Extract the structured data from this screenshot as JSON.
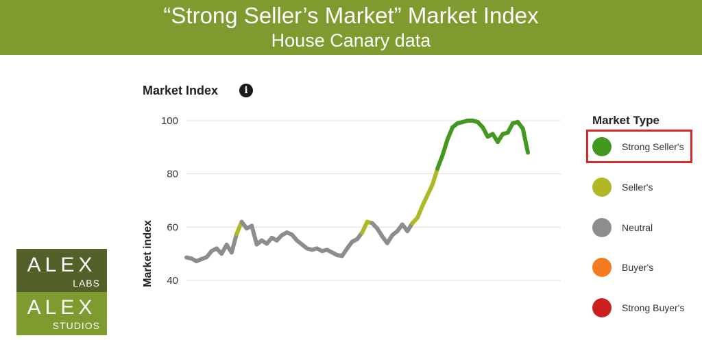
{
  "header": {
    "title": "“Strong Seller’s Market” Market Index",
    "subtitle": "House Canary data"
  },
  "chart_title": "Market Index",
  "info_icon": "info-icon",
  "legend": {
    "title": "Market Type",
    "items": [
      {
        "label": "Strong Seller's",
        "color": "#43991f"
      },
      {
        "label": "Seller's",
        "color": "#b0b825"
      },
      {
        "label": "Neutral",
        "color": "#8d8d8d"
      },
      {
        "label": "Buyer's",
        "color": "#f47b20"
      },
      {
        "label": "Strong Buyer's",
        "color": "#cc1f1f"
      }
    ],
    "highlighted": "Strong Seller's",
    "highlight_color": "#d62a2a"
  },
  "logo": {
    "line1": "ALEX",
    "line2": "LABS",
    "line3": "ALEX",
    "line4": "STUDIOS",
    "color_top": "#54602a",
    "color_bottom": "#7f9a2e"
  },
  "chart_data": {
    "type": "line",
    "title": "Market Index",
    "ylabel": "Market index",
    "xlabel": "",
    "ylim": [
      40,
      100
    ],
    "yticks": [
      100,
      80,
      60,
      40
    ],
    "grid": true,
    "legend_position": "right",
    "series": [
      {
        "values": [
          {
            "x": 0,
            "y": 48.6,
            "t": "neutral"
          },
          {
            "x": 1,
            "y": 48.2,
            "t": "neutral"
          },
          {
            "x": 2,
            "y": 47.2,
            "t": "neutral"
          },
          {
            "x": 3,
            "y": 48.0,
            "t": "neutral"
          },
          {
            "x": 4,
            "y": 48.7,
            "t": "neutral"
          },
          {
            "x": 5,
            "y": 51.0,
            "t": "neutral"
          },
          {
            "x": 6,
            "y": 52.0,
            "t": "neutral"
          },
          {
            "x": 7,
            "y": 50.0,
            "t": "neutral"
          },
          {
            "x": 8,
            "y": 53.4,
            "t": "neutral"
          },
          {
            "x": 9,
            "y": 50.5,
            "t": "neutral"
          },
          {
            "x": 10,
            "y": 57.5,
            "t": "neutral"
          },
          {
            "x": 11,
            "y": 62.0,
            "t": "sellers"
          },
          {
            "x": 12,
            "y": 59.5,
            "t": "neutral"
          },
          {
            "x": 13,
            "y": 60.5,
            "t": "neutral"
          },
          {
            "x": 14,
            "y": 53.5,
            "t": "neutral"
          },
          {
            "x": 15,
            "y": 55.0,
            "t": "neutral"
          },
          {
            "x": 16,
            "y": 53.8,
            "t": "neutral"
          },
          {
            "x": 17,
            "y": 56.0,
            "t": "neutral"
          },
          {
            "x": 18,
            "y": 55.0,
            "t": "neutral"
          },
          {
            "x": 19,
            "y": 57.0,
            "t": "neutral"
          },
          {
            "x": 20,
            "y": 58.0,
            "t": "neutral"
          },
          {
            "x": 21,
            "y": 57.2,
            "t": "neutral"
          },
          {
            "x": 22,
            "y": 55.0,
            "t": "neutral"
          },
          {
            "x": 23,
            "y": 53.5,
            "t": "neutral"
          },
          {
            "x": 24,
            "y": 52.0,
            "t": "neutral"
          },
          {
            "x": 25,
            "y": 51.5,
            "t": "neutral"
          },
          {
            "x": 26,
            "y": 52.0,
            "t": "neutral"
          },
          {
            "x": 27,
            "y": 51.0,
            "t": "neutral"
          },
          {
            "x": 28,
            "y": 51.5,
            "t": "neutral"
          },
          {
            "x": 29,
            "y": 50.5,
            "t": "neutral"
          },
          {
            "x": 30,
            "y": 49.5,
            "t": "neutral"
          },
          {
            "x": 31,
            "y": 49.2,
            "t": "neutral"
          },
          {
            "x": 32,
            "y": 52.0,
            "t": "neutral"
          },
          {
            "x": 33,
            "y": 54.5,
            "t": "neutral"
          },
          {
            "x": 34,
            "y": 55.5,
            "t": "neutral"
          },
          {
            "x": 35,
            "y": 58.0,
            "t": "neutral"
          },
          {
            "x": 36,
            "y": 62.0,
            "t": "sellers"
          },
          {
            "x": 37,
            "y": 61.5,
            "t": "sellers"
          },
          {
            "x": 38,
            "y": 59.5,
            "t": "neutral"
          },
          {
            "x": 39,
            "y": 56.5,
            "t": "neutral"
          },
          {
            "x": 40,
            "y": 54.0,
            "t": "neutral"
          },
          {
            "x": 41,
            "y": 57.0,
            "t": "neutral"
          },
          {
            "x": 42,
            "y": 58.5,
            "t": "neutral"
          },
          {
            "x": 43,
            "y": 61.0,
            "t": "neutral"
          },
          {
            "x": 44,
            "y": 58.5,
            "t": "neutral"
          },
          {
            "x": 45,
            "y": 61.5,
            "t": "neutral"
          },
          {
            "x": 46,
            "y": 63.5,
            "t": "sellers"
          },
          {
            "x": 47,
            "y": 68.0,
            "t": "sellers"
          },
          {
            "x": 48,
            "y": 72.0,
            "t": "sellers"
          },
          {
            "x": 49,
            "y": 76.0,
            "t": "sellers"
          },
          {
            "x": 50,
            "y": 82.0,
            "t": "sellers"
          },
          {
            "x": 51,
            "y": 87.0,
            "t": "strong"
          },
          {
            "x": 52,
            "y": 93.0,
            "t": "strong"
          },
          {
            "x": 53,
            "y": 97.5,
            "t": "strong"
          },
          {
            "x": 54,
            "y": 99.0,
            "t": "strong"
          },
          {
            "x": 55,
            "y": 99.5,
            "t": "strong"
          },
          {
            "x": 56,
            "y": 100.0,
            "t": "strong"
          },
          {
            "x": 57,
            "y": 100.0,
            "t": "strong"
          },
          {
            "x": 58,
            "y": 99.5,
            "t": "strong"
          },
          {
            "x": 59,
            "y": 97.5,
            "t": "strong"
          },
          {
            "x": 60,
            "y": 94.0,
            "t": "strong"
          },
          {
            "x": 61,
            "y": 95.0,
            "t": "strong"
          },
          {
            "x": 62,
            "y": 92.0,
            "t": "strong"
          },
          {
            "x": 63,
            "y": 95.0,
            "t": "strong"
          },
          {
            "x": 64,
            "y": 95.5,
            "t": "strong"
          },
          {
            "x": 65,
            "y": 99.0,
            "t": "strong"
          },
          {
            "x": 66,
            "y": 99.5,
            "t": "strong"
          },
          {
            "x": 67,
            "y": 97.0,
            "t": "strong"
          },
          {
            "x": 68,
            "y": 88.0,
            "t": "strong"
          }
        ]
      }
    ]
  }
}
